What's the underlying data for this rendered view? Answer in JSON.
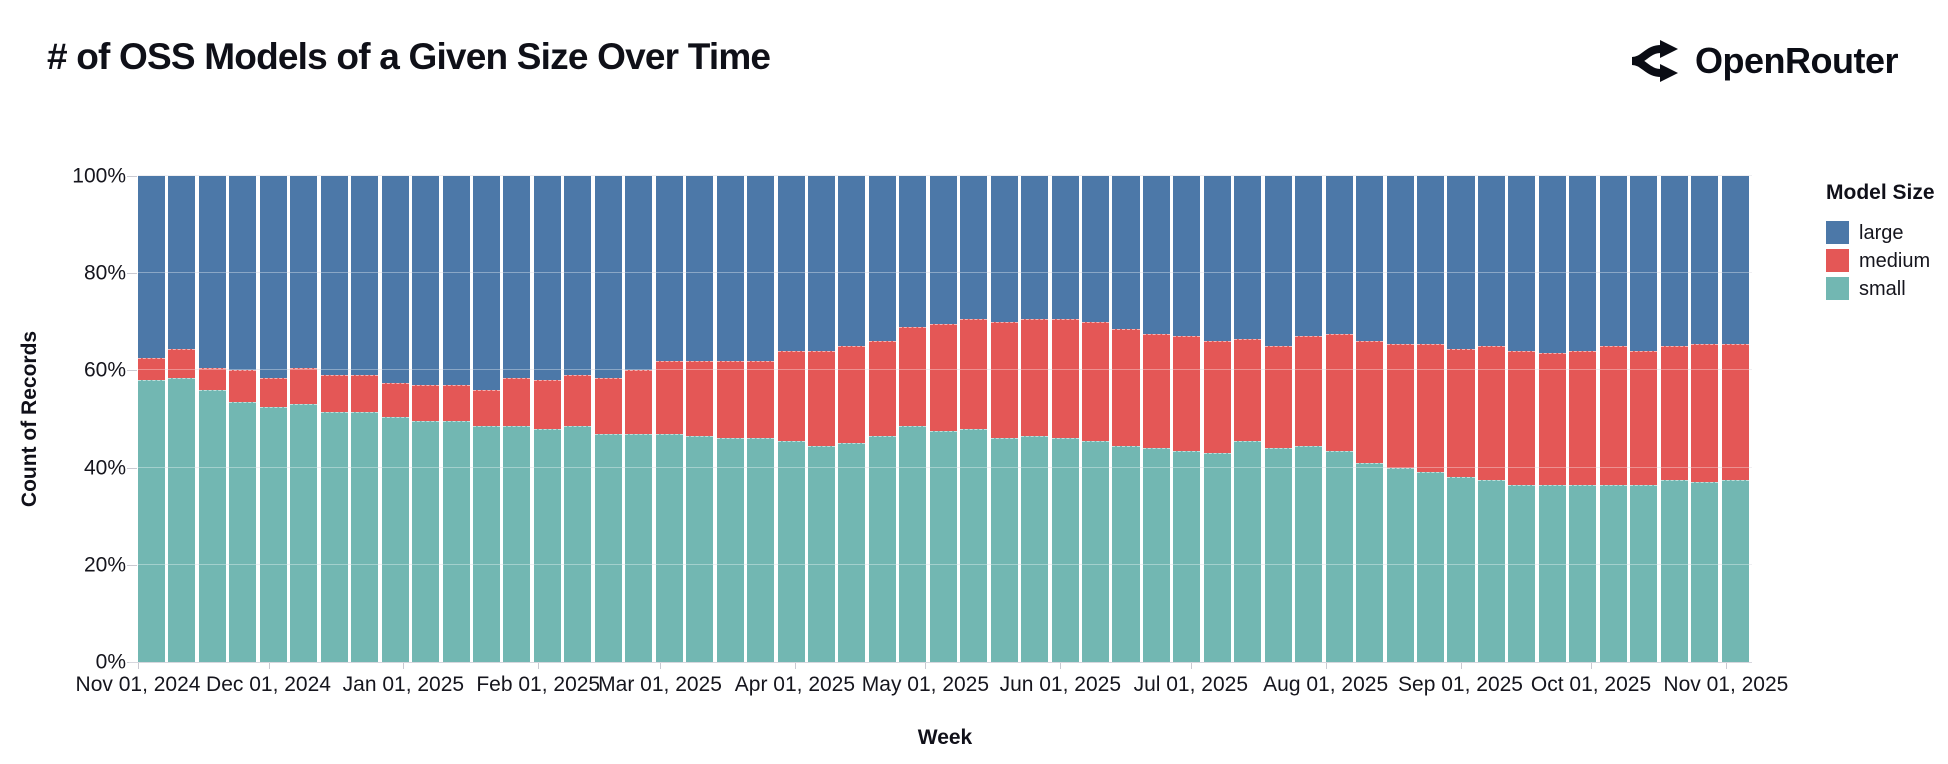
{
  "header": {
    "title": "# of OSS Models of a Given Size Over Time",
    "brand": "OpenRouter"
  },
  "chart_data": {
    "type": "bar",
    "stacked": true,
    "normalized": true,
    "title": "# of OSS Models of a Given Size Over Time",
    "xlabel": "Week",
    "ylabel": "Count of Records",
    "ylim": [
      0,
      100
    ],
    "grid": true,
    "y_ticks": [
      {
        "value": 0,
        "label": "0%"
      },
      {
        "value": 20,
        "label": "20%"
      },
      {
        "value": 40,
        "label": "40%"
      },
      {
        "value": 60,
        "label": "60%"
      },
      {
        "value": 80,
        "label": "80%"
      },
      {
        "value": 100,
        "label": "100%"
      }
    ],
    "x_ticks": [
      "Nov 01, 2024",
      "Dec 01, 2024",
      "Jan 01, 2025",
      "Feb 01, 2025",
      "Mar 01, 2025",
      "Apr 01, 2025",
      "May 01, 2025",
      "Jun 01, 2025",
      "Jul 01, 2025",
      "Aug 01, 2025",
      "Sep 01, 2025",
      "Oct 01, 2025",
      "Nov 01, 2025"
    ],
    "legend": {
      "title": "Model Size",
      "position": "right",
      "entries": [
        {
          "label": "large",
          "color": "#4c78a8"
        },
        {
          "label": "medium",
          "color": "#e45756"
        },
        {
          "label": "small",
          "color": "#72b7b2"
        }
      ]
    },
    "weeks": [
      "2024-11-01",
      "2024-11-08",
      "2024-11-15",
      "2024-11-22",
      "2024-11-29",
      "2024-12-06",
      "2024-12-13",
      "2024-12-20",
      "2024-12-27",
      "2025-01-03",
      "2025-01-10",
      "2025-01-17",
      "2025-01-24",
      "2025-01-31",
      "2025-02-07",
      "2025-02-14",
      "2025-02-21",
      "2025-02-28",
      "2025-03-07",
      "2025-03-14",
      "2025-03-21",
      "2025-03-28",
      "2025-04-04",
      "2025-04-11",
      "2025-04-18",
      "2025-04-25",
      "2025-05-02",
      "2025-05-09",
      "2025-05-16",
      "2025-05-23",
      "2025-05-30",
      "2025-06-06",
      "2025-06-13",
      "2025-06-20",
      "2025-06-27",
      "2025-07-04",
      "2025-07-11",
      "2025-07-18",
      "2025-07-25",
      "2025-08-01",
      "2025-08-08",
      "2025-08-15",
      "2025-08-22",
      "2025-08-29",
      "2025-09-05",
      "2025-09-12",
      "2025-09-19",
      "2025-09-26",
      "2025-10-03",
      "2025-10-10",
      "2025-10-17",
      "2025-10-24",
      "2025-10-31"
    ],
    "series": [
      {
        "name": "small",
        "color": "#72b7b2",
        "unit": "percent",
        "values": [
          58,
          58.5,
          56,
          53.5,
          52.5,
          53,
          51.5,
          51.5,
          50.5,
          49.5,
          49.5,
          48.5,
          48.5,
          48,
          48.5,
          47,
          47,
          47,
          46.5,
          46,
          46,
          45.5,
          44.5,
          45,
          46.5,
          48.5,
          47.5,
          48,
          46,
          46.5,
          46,
          45.5,
          44.5,
          44,
          43.5,
          43,
          45.5,
          44,
          44.5,
          43.5,
          41,
          40,
          39,
          38,
          37.5,
          36.5,
          36.5,
          36.5,
          36.5,
          36.5,
          37.5,
          37,
          37.5
        ]
      },
      {
        "name": "medium",
        "color": "#e45756",
        "unit": "percent",
        "values": [
          4.5,
          6,
          4.5,
          6.5,
          6,
          7.5,
          7.5,
          7.5,
          7,
          7.5,
          7.5,
          7.5,
          10,
          10,
          10.5,
          11.5,
          13,
          15,
          15.5,
          16,
          16,
          18.5,
          19.5,
          20,
          19.5,
          20.5,
          22,
          22.5,
          24,
          24,
          24.5,
          24.5,
          24,
          23.5,
          23.5,
          23,
          21,
          21,
          22.5,
          24,
          25,
          25.5,
          26.5,
          26.5,
          27.5,
          27.5,
          27,
          27.5,
          28.5,
          27.5,
          27.5,
          28.5,
          28
        ]
      },
      {
        "name": "large",
        "color": "#4c78a8",
        "unit": "percent",
        "values": [
          37.5,
          35.5,
          39.5,
          40,
          41.5,
          39.5,
          41,
          41,
          42.5,
          43,
          43,
          44,
          41.5,
          42,
          41,
          41.5,
          40,
          38,
          38,
          38,
          38,
          36,
          36,
          35,
          34,
          31,
          30.5,
          29.5,
          30,
          29.5,
          29.5,
          30,
          31.5,
          32.5,
          33,
          34,
          33.5,
          35,
          33,
          32.5,
          34,
          34.5,
          34.5,
          35.5,
          35,
          36,
          36.5,
          36,
          35,
          36,
          35,
          34.5,
          34.5
        ]
      }
    ]
  }
}
